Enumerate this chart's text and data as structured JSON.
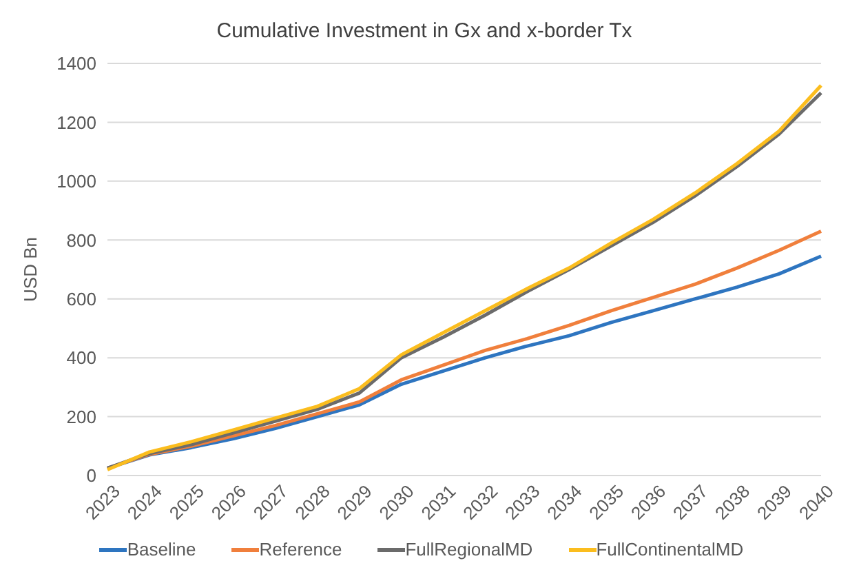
{
  "chart_data": {
    "type": "line",
    "title": "Cumulative Investment in Gx and x-border Tx",
    "ylabel": "USD Bn",
    "categories": [
      "2023",
      "2024",
      "2025",
      "2026",
      "2027",
      "2028",
      "2029",
      "2030",
      "2031",
      "2032",
      "2033",
      "2034",
      "2035",
      "2036",
      "2037",
      "2038",
      "2039",
      "2040"
    ],
    "series": [
      {
        "name": "Baseline",
        "color": "#2e75c0",
        "values": [
          25,
          70,
          95,
          125,
          160,
          200,
          240,
          310,
          355,
          400,
          440,
          475,
          520,
          560,
          600,
          640,
          685,
          745
        ]
      },
      {
        "name": "Reference",
        "color": "#f07f3c",
        "values": [
          25,
          72,
          100,
          135,
          170,
          210,
          250,
          325,
          375,
          425,
          465,
          510,
          560,
          605,
          650,
          705,
          765,
          830
        ]
      },
      {
        "name": "FullRegionalMD",
        "color": "#6b6b6b",
        "values": [
          25,
          75,
          105,
          145,
          185,
          225,
          280,
          400,
          470,
          545,
          625,
          700,
          780,
          860,
          950,
          1050,
          1160,
          1300
        ]
      },
      {
        "name": "FullContinentalMD",
        "color": "#fbbd1e",
        "values": [
          20,
          80,
          115,
          155,
          195,
          235,
          295,
          410,
          485,
          560,
          635,
          705,
          790,
          870,
          960,
          1060,
          1170,
          1325
        ]
      }
    ],
    "ylim": [
      0,
      1400
    ],
    "yticks": [
      0,
      200,
      400,
      600,
      800,
      1000,
      1200,
      1400
    ],
    "grid": "y",
    "legend": "bottom",
    "marker": "none",
    "line_style": "solid"
  }
}
